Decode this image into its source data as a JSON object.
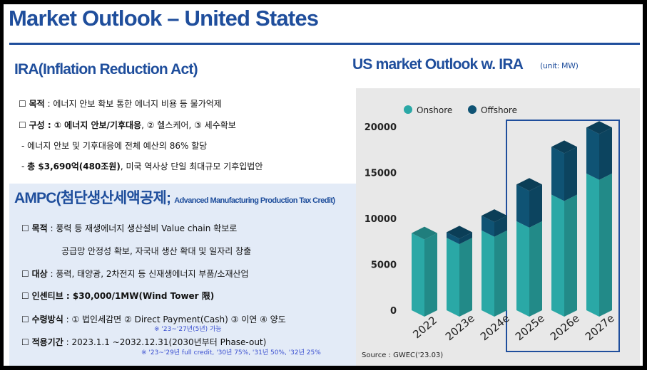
{
  "page": {
    "title": "Market Outlook – United States"
  },
  "ira": {
    "heading": "IRA(Inflation Reduction Act)",
    "lines": [
      {
        "box": "☐",
        "label": "목적",
        "sep": " : ",
        "text": "에너지 안보 확보 통한 에너지 비용 등 물가억제"
      },
      {
        "box": "☐",
        "label": "구성 : ① 에너지 안보/기후대응",
        "sep": ", ",
        "text": "② 헬스케어, ③ 세수확보"
      },
      {
        "box": "-",
        "label": "",
        "sep": " ",
        "text": "에너지 안보 및 기후대응에 전체 예산의 86% 할당"
      },
      {
        "box": "-",
        "label": "총 $3,690억(480조원)",
        "sep": ", ",
        "text": "미국 역사상 단일 최대규모 기후입법안"
      }
    ]
  },
  "ampc": {
    "heading": "AMPC(첨단생산세액공제; ",
    "heading_sub": "Advanced Manufacturing Production Tax Credit)",
    "lines": [
      {
        "box": "☐",
        "label": "목적",
        "sep": " : ",
        "text": "풍력 등 재생에너지 생산설비 Value chain 확보로"
      },
      {
        "box": "",
        "label": "",
        "sep": "",
        "text": "공급망 안정성 확보, 자국내 생산 확대 및 일자리 창출"
      },
      {
        "box": "☐",
        "label": "대상",
        "sep": " : ",
        "text": "풍력, 태양광, 2차전지 등 신재생에너지 부품/소재산업"
      },
      {
        "box": "☐",
        "label": "인센티브 : $30,000/1MW(Wind Tower 限)",
        "sep": "",
        "text": ""
      },
      {
        "box": "☐",
        "label": "수령방식",
        "sep": " : ",
        "text": "① 법인세감면 ② Direct Payment(Cash) ③ 이연 ④ 양도"
      },
      {
        "box": "☐",
        "label": "적용기간",
        "sep": " : ",
        "text": "2023.1.1 ~2032.12.31(2030년부터 Phase-out)"
      }
    ],
    "note_payment": "※ '23~'27년(5년) 가능",
    "note_period": "※ '23~'29년 full credit, '30년 75%, '31년 50%, '32년 25%"
  },
  "chart_data": {
    "type": "bar",
    "stacked": true,
    "title": "US market Outlook w. IRA",
    "unit_label": "(unit: MW)",
    "categories": [
      "2022",
      "2023e",
      "2024e",
      "2025e",
      "2026e",
      "2027e"
    ],
    "series": [
      {
        "name": "Onshore",
        "color": "#2aa8a6",
        "values": [
          8400,
          7900,
          8700,
          9700,
          12600,
          14900
        ]
      },
      {
        "name": "Offshore",
        "color": "#0f5374",
        "values": [
          0,
          600,
          1600,
          4000,
          5200,
          5000
        ]
      }
    ],
    "ylim": [
      0,
      20000
    ],
    "yticks": [
      "0",
      "5000",
      "10000",
      "15000",
      "20000"
    ],
    "highlight_categories": [
      "2025e",
      "2026e",
      "2027e"
    ],
    "highlight_color": "#1f4e9c",
    "legend_position": "top",
    "grid": false,
    "source": "Source : GWEC('23.03)"
  }
}
